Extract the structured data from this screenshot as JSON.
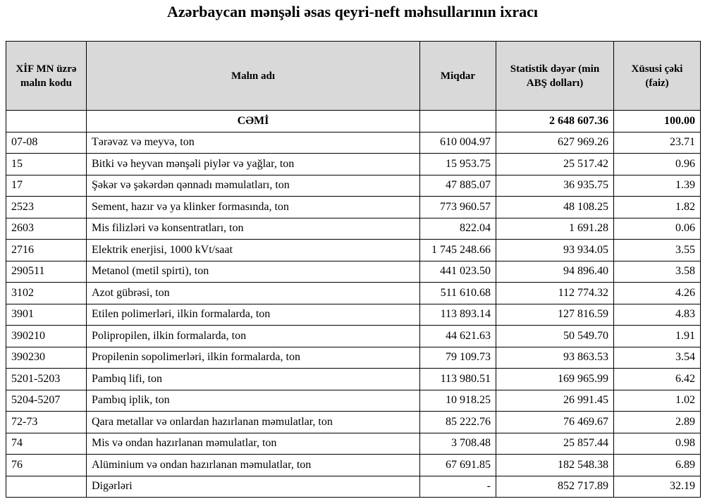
{
  "header": {
    "title": "Azərbaycan mənşəli əsas qeyri-neft məhsullarının ixracı"
  },
  "table": {
    "columns": [
      "XİF MN üzrə malın kodu",
      "Malın adı",
      "Miqdar",
      "Statistik dəyər (min ABŞ dolları)",
      "Xüsusi çəki (faiz)"
    ],
    "total": {
      "label": "CƏMİ",
      "value": "2 648 607.36",
      "share": "100.00"
    },
    "rows": [
      [
        "07-08",
        "Tərəvəz və meyvə, ton",
        "610 004.97",
        "627 969.26",
        "23.71"
      ],
      [
        "15",
        "Bitki və heyvan mənşəli piylər və yağlar, ton",
        "15 953.75",
        "25 517.42",
        "0.96"
      ],
      [
        "17",
        "Şəkər və şəkərdən qənnadı məmulatları, ton",
        "47 885.07",
        "36 935.75",
        "1.39"
      ],
      [
        "2523",
        "Sement, hazır və ya klinker formasında, ton",
        "773 960.57",
        "48 108.25",
        "1.82"
      ],
      [
        "2603",
        "Mis filizləri və konsentratları, ton",
        "822.04",
        "1 691.28",
        "0.06"
      ],
      [
        "2716",
        "Elektrik enerjisi, 1000 kVt/saat",
        "1 745 248.66",
        "93 934.05",
        "3.55"
      ],
      [
        "290511",
        "Metanol (metil spirti), ton",
        "441 023.50",
        "94 896.40",
        "3.58"
      ],
      [
        "3102",
        "Azot gübrəsi, ton",
        "511 610.68",
        "112 774.32",
        "4.26"
      ],
      [
        "3901",
        "Etilen polimerləri, ilkin formalarda, ton",
        "113 893.14",
        "127 816.59",
        "4.83"
      ],
      [
        "390210",
        "Polipropilen, ilkin formalarda, ton",
        "44 621.63",
        "50 549.70",
        "1.91"
      ],
      [
        "390230",
        "Propilenin sopolimerləri, ilkin formalarda, ton",
        "79 109.73",
        "93 863.53",
        "3.54"
      ],
      [
        "5201-5203",
        "Pambıq lifi, ton",
        "113 980.51",
        "169 965.99",
        "6.42"
      ],
      [
        "5204-5207",
        "Pambıq iplik, ton",
        "10 918.25",
        "26 991.45",
        "1.02"
      ],
      [
        "72-73",
        "Qara metallar və onlardan hazırlanan məmulatlar, ton",
        "85 222.76",
        "76 469.67",
        "2.89"
      ],
      [
        "74",
        "Mis və ondan hazırlanan məmulatlar, ton",
        "3 708.48",
        "25 857.44",
        "0.98"
      ],
      [
        "76",
        "Alüminium və ondan hazırlanan məmulatlar, ton",
        "67 691.85",
        "182 548.38",
        "6.89"
      ],
      [
        null,
        "Digərləri",
        "-",
        "852 717.89",
        "32.19"
      ]
    ]
  }
}
